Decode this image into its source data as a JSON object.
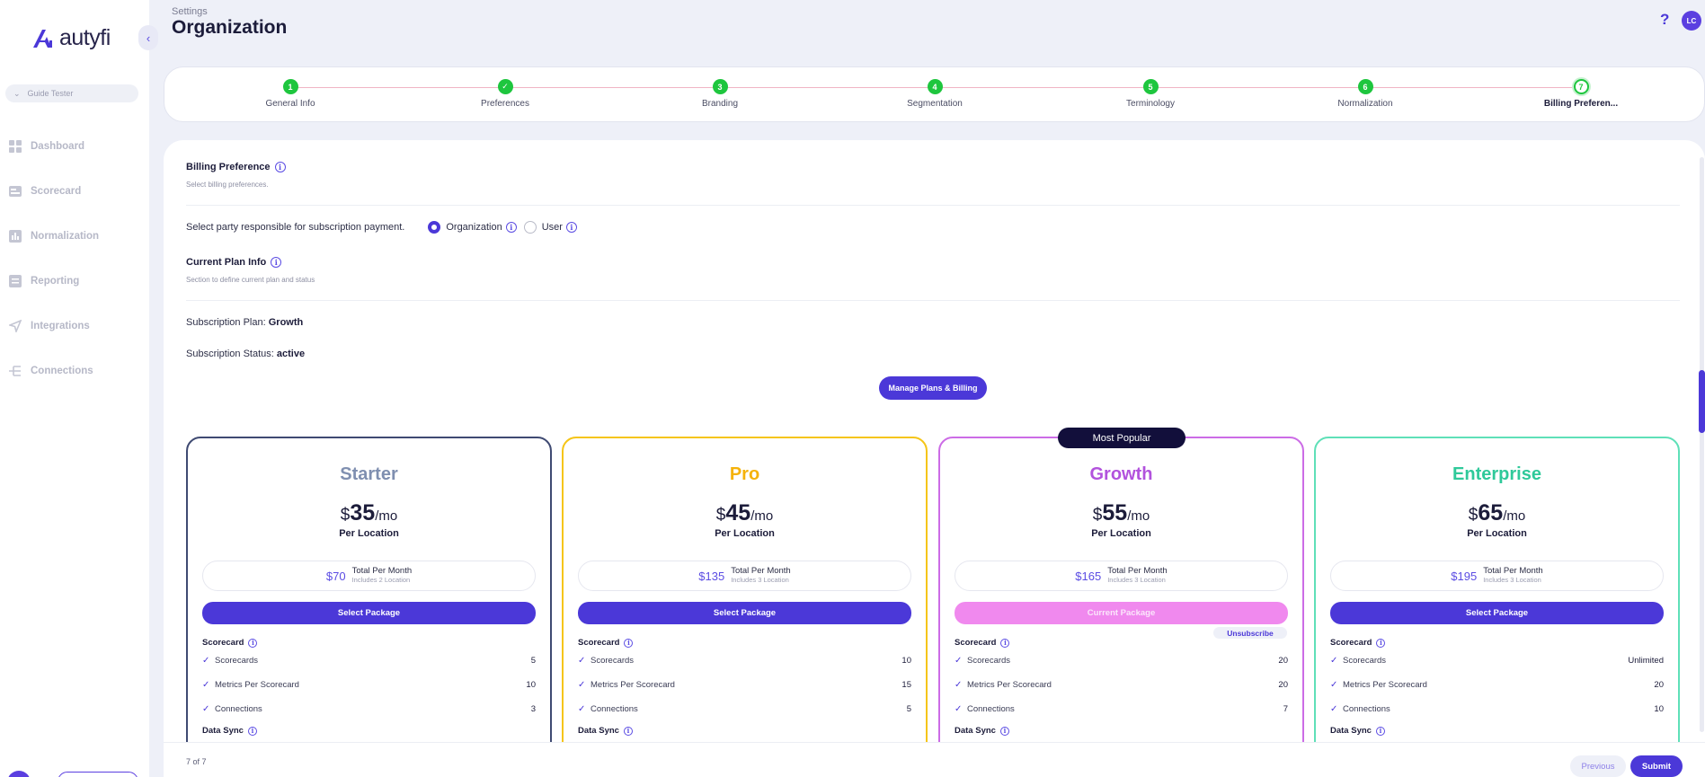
{
  "app": {
    "logo_text": "autyfi"
  },
  "sidebar": {
    "workspace": "Guide Tester",
    "items": [
      {
        "label": "Dashboard",
        "icon": "dashboard-icon"
      },
      {
        "label": "Scorecard",
        "icon": "scorecard-icon"
      },
      {
        "label": "Normalization",
        "icon": "normalization-icon"
      },
      {
        "label": "Reporting",
        "icon": "reporting-icon"
      },
      {
        "label": "Integrations",
        "icon": "integrations-icon"
      },
      {
        "label": "Connections",
        "icon": "connections-icon"
      }
    ]
  },
  "header": {
    "breadcrumb": "Settings",
    "title": "Organization",
    "help": "?",
    "avatar_initials": "LC"
  },
  "stepper": {
    "steps": [
      {
        "num": "1",
        "label": "General Info"
      },
      {
        "num": "✓",
        "label": "Preferences"
      },
      {
        "num": "3",
        "label": "Branding"
      },
      {
        "num": "4",
        "label": "Segmentation"
      },
      {
        "num": "5",
        "label": "Terminology"
      },
      {
        "num": "6",
        "label": "Normalization"
      },
      {
        "num": "7",
        "label": "Billing Preferen..."
      }
    ],
    "active_step": 7
  },
  "billing": {
    "title": "Billing Preference",
    "subtitle": "Select billing preferences.",
    "party_question": "Select party responsible for subscription payment.",
    "options": {
      "organization": "Organization",
      "user": "User"
    },
    "selected": "Organization"
  },
  "plan_info": {
    "title": "Current Plan Info",
    "subtitle": "Section to define current plan and status",
    "plan_label": "Subscription Plan:",
    "plan_value": "Growth",
    "status_label": "Subscription Status:",
    "status_value": "active",
    "manage_button": "Manage Plans & Billing"
  },
  "plans": [
    {
      "name": "Starter",
      "color": "#7f8fb0",
      "border": "#3f4a72",
      "currency": "$",
      "price": "35",
      "period": "/mo",
      "per": "Per Location",
      "total": "$70",
      "total_label": "Total Per Month",
      "includes": "Includes 2 Location",
      "button": "Select Package",
      "scorecard_head": "Scorecard",
      "features": [
        {
          "label": "Scorecards",
          "value": "5"
        },
        {
          "label": "Metrics Per Scorecard",
          "value": "10"
        },
        {
          "label": "Connections",
          "value": "3"
        }
      ],
      "datasync_head": "Data Sync"
    },
    {
      "name": "Pro",
      "color": "#f5b20a",
      "border": "#f5c518",
      "currency": "$",
      "price": "45",
      "period": "/mo",
      "per": "Per Location",
      "total": "$135",
      "total_label": "Total Per Month",
      "includes": "Includes 3 Location",
      "button": "Select Package",
      "scorecard_head": "Scorecard",
      "features": [
        {
          "label": "Scorecards",
          "value": "10"
        },
        {
          "label": "Metrics Per Scorecard",
          "value": "15"
        },
        {
          "label": "Connections",
          "value": "5"
        }
      ],
      "datasync_head": "Data Sync"
    },
    {
      "name": "Growth",
      "color": "#b252dd",
      "border": "#cc6ce6",
      "currency": "$",
      "price": "55",
      "period": "/mo",
      "per": "Per Location",
      "total": "$165",
      "total_label": "Total Per Month",
      "includes": "Includes 3 Location",
      "button": "Current Package",
      "unsubscribe": "Unsubscribe",
      "badge": "Most Popular",
      "scorecard_head": "Scorecard",
      "features": [
        {
          "label": "Scorecards",
          "value": "20"
        },
        {
          "label": "Metrics Per Scorecard",
          "value": "20"
        },
        {
          "label": "Connections",
          "value": "7"
        }
      ],
      "datasync_head": "Data Sync"
    },
    {
      "name": "Enterprise",
      "color": "#2fc99a",
      "border": "#5fe0b8",
      "currency": "$",
      "price": "65",
      "period": "/mo",
      "per": "Per Location",
      "total": "$195",
      "total_label": "Total Per Month",
      "includes": "Includes 3 Location",
      "button": "Select Package",
      "scorecard_head": "Scorecard",
      "features": [
        {
          "label": "Scorecards",
          "value": "Unlimited"
        },
        {
          "label": "Metrics Per Scorecard",
          "value": "20"
        },
        {
          "label": "Connections",
          "value": "10"
        }
      ],
      "datasync_head": "Data Sync"
    }
  ],
  "footer": {
    "page_indicator": "7 of 7",
    "previous": "Previous",
    "submit": "Submit"
  }
}
